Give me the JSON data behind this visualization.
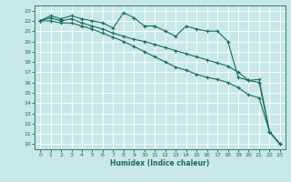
{
  "xlabel": "Humidex (Indice chaleur)",
  "bg_color": "#c8e8e8",
  "grid_color": "#ffffff",
  "line_color": "#1a6b5a",
  "xlim": [
    -0.5,
    23.5
  ],
  "ylim": [
    9.5,
    23.5
  ],
  "yticks": [
    10,
    11,
    12,
    13,
    14,
    15,
    16,
    17,
    18,
    19,
    20,
    21,
    22,
    23
  ],
  "xticks": [
    0,
    1,
    2,
    3,
    4,
    5,
    6,
    7,
    8,
    9,
    10,
    11,
    12,
    13,
    14,
    15,
    16,
    17,
    18,
    19,
    20,
    21,
    22,
    23
  ],
  "line1_x": [
    0,
    1,
    2,
    3,
    4,
    5,
    6,
    7,
    8,
    9,
    10,
    11,
    12,
    13,
    14,
    15,
    16,
    17,
    18,
    19,
    20,
    21,
    22,
    23
  ],
  "line1_y": [
    22,
    22.5,
    22.2,
    22.5,
    22.2,
    22.0,
    21.8,
    21.3,
    22.8,
    22.3,
    21.5,
    21.5,
    21.0,
    20.5,
    21.5,
    21.2,
    21.0,
    21.0,
    20.0,
    16.5,
    16.2,
    16.3,
    11.2,
    10
  ],
  "line2_x": [
    0,
    1,
    2,
    3,
    4,
    5,
    6,
    7,
    8,
    9,
    10,
    11,
    12,
    13,
    14,
    15,
    16,
    17,
    18,
    19,
    20,
    21,
    22,
    23
  ],
  "line2_y": [
    22,
    22.3,
    22.0,
    22.2,
    21.8,
    21.5,
    21.2,
    20.8,
    20.5,
    20.2,
    20.0,
    19.7,
    19.4,
    19.1,
    18.8,
    18.5,
    18.2,
    17.9,
    17.6,
    17.0,
    16.2,
    16.0,
    11.2,
    10
  ],
  "line3_x": [
    0,
    1,
    2,
    3,
    4,
    5,
    6,
    7,
    8,
    9,
    10,
    11,
    12,
    13,
    14,
    15,
    16,
    17,
    18,
    19,
    20,
    21,
    22,
    23
  ],
  "line3_y": [
    22,
    22.0,
    21.8,
    21.8,
    21.5,
    21.2,
    20.8,
    20.4,
    20.0,
    19.5,
    19.0,
    18.5,
    18.0,
    17.5,
    17.2,
    16.8,
    16.5,
    16.3,
    16.0,
    15.5,
    14.8,
    14.5,
    11.2,
    10
  ]
}
